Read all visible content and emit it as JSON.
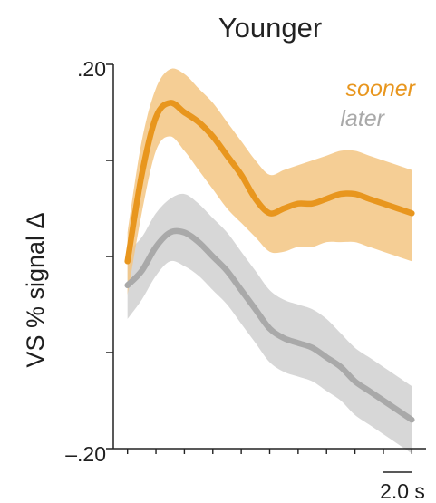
{
  "chart_data": {
    "type": "line",
    "title": "Younger",
    "xlabel": "",
    "ylabel": "VS % signal Δ",
    "y_tick_labels": [
      ".20",
      "–.20"
    ],
    "ylim": [
      -0.2,
      0.2
    ],
    "xlim": [
      -1.0,
      21.0
    ],
    "x_unit": "s",
    "scale_bar": {
      "label": "2.0 s",
      "value": 2.0
    },
    "grid": false,
    "legend_placement": "top-right",
    "x": [
      0,
      1,
      2,
      3,
      4,
      5,
      6,
      7,
      8,
      9,
      10,
      11,
      12,
      13,
      14,
      15,
      16,
      17,
      18,
      19,
      20
    ],
    "series": [
      {
        "name": "sooner",
        "color": "#E8961E",
        "band_color": "#F3C583",
        "values": [
          -0.005,
          0.085,
          0.145,
          0.16,
          0.15,
          0.14,
          0.125,
          0.105,
          0.085,
          0.06,
          0.045,
          0.05,
          0.055,
          0.055,
          0.06,
          0.065,
          0.065,
          0.06,
          0.055,
          0.05,
          0.045
        ],
        "ci_lower": [
          -0.04,
          0.045,
          0.11,
          0.125,
          0.11,
          0.09,
          0.07,
          0.05,
          0.035,
          0.02,
          0.005,
          0.005,
          0.01,
          0.01,
          0.015,
          0.015,
          0.015,
          0.01,
          0.005,
          0.0,
          -0.005
        ],
        "ci_upper": [
          0.025,
          0.12,
          0.175,
          0.195,
          0.19,
          0.175,
          0.16,
          0.14,
          0.12,
          0.1,
          0.085,
          0.09,
          0.095,
          0.1,
          0.105,
          0.11,
          0.11,
          0.105,
          0.1,
          0.095,
          0.09
        ]
      },
      {
        "name": "later",
        "color": "#A9A9A9",
        "band_color": "#D0D0D0",
        "values": [
          -0.03,
          -0.015,
          0.01,
          0.025,
          0.025,
          0.015,
          0.0,
          -0.015,
          -0.035,
          -0.055,
          -0.075,
          -0.085,
          -0.09,
          -0.095,
          -0.105,
          -0.115,
          -0.13,
          -0.14,
          -0.15,
          -0.16,
          -0.17
        ],
        "ci_lower": [
          -0.065,
          -0.045,
          -0.02,
          -0.005,
          -0.01,
          -0.02,
          -0.035,
          -0.05,
          -0.07,
          -0.09,
          -0.11,
          -0.12,
          -0.125,
          -0.13,
          -0.14,
          -0.15,
          -0.165,
          -0.175,
          -0.185,
          -0.195,
          -0.205
        ],
        "ci_upper": [
          0.005,
          0.02,
          0.045,
          0.06,
          0.065,
          0.055,
          0.04,
          0.025,
          0.005,
          -0.015,
          -0.035,
          -0.045,
          -0.05,
          -0.055,
          -0.065,
          -0.08,
          -0.095,
          -0.105,
          -0.115,
          -0.125,
          -0.135
        ]
      }
    ]
  }
}
